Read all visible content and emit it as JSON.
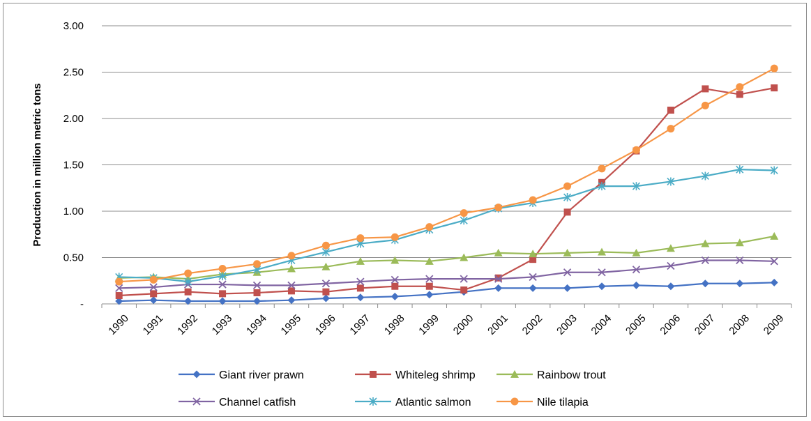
{
  "chart_data": {
    "type": "line",
    "title": "",
    "xlabel": "",
    "ylabel": "Production in million  metric tons",
    "ylim": [
      0,
      3.0
    ],
    "yticks": [
      0,
      0.5,
      1.0,
      1.5,
      2.0,
      2.5,
      3.0
    ],
    "ytick_labels": [
      "-",
      "0.50",
      "1.00",
      "1.50",
      "2.00",
      "2.50",
      "3.00"
    ],
    "grid": "horizontal",
    "legend_position": "bottom",
    "categories": [
      "1990",
      "1991",
      "1992",
      "1993",
      "1994",
      "1995",
      "1996",
      "1997",
      "1998",
      "1999",
      "2000",
      "2001",
      "2002",
      "2003",
      "2004",
      "2005",
      "2006",
      "2007",
      "2008",
      "2009"
    ],
    "series": [
      {
        "name": "Giant river prawn",
        "color": "#4472c4",
        "marker": "diamond",
        "values": [
          0.03,
          0.04,
          0.03,
          0.03,
          0.03,
          0.04,
          0.06,
          0.07,
          0.08,
          0.1,
          0.13,
          0.17,
          0.17,
          0.17,
          0.19,
          0.2,
          0.19,
          0.22,
          0.22,
          0.23
        ]
      },
      {
        "name": "Whiteleg shrimp",
        "color": "#c0504d",
        "marker": "square",
        "values": [
          0.09,
          0.11,
          0.13,
          0.11,
          0.12,
          0.14,
          0.13,
          0.17,
          0.19,
          0.19,
          0.15,
          0.28,
          0.48,
          0.99,
          1.31,
          1.65,
          2.09,
          2.32,
          2.26,
          2.33
        ]
      },
      {
        "name": "Rainbow trout",
        "color": "#9bbb59",
        "marker": "triangle",
        "values": [
          0.28,
          0.29,
          0.27,
          0.32,
          0.34,
          0.38,
          0.4,
          0.46,
          0.47,
          0.46,
          0.5,
          0.55,
          0.54,
          0.55,
          0.56,
          0.55,
          0.6,
          0.65,
          0.66,
          0.73
        ]
      },
      {
        "name": "Channel catfish",
        "color": "#8064a2",
        "marker": "x",
        "values": [
          0.17,
          0.18,
          0.21,
          0.21,
          0.2,
          0.2,
          0.22,
          0.24,
          0.26,
          0.27,
          0.27,
          0.27,
          0.29,
          0.34,
          0.34,
          0.37,
          0.41,
          0.47,
          0.47,
          0.46
        ]
      },
      {
        "name": "Atlantic salmon",
        "color": "#4bacc6",
        "marker": "star",
        "values": [
          0.29,
          0.28,
          0.24,
          0.3,
          0.37,
          0.47,
          0.56,
          0.65,
          0.69,
          0.8,
          0.9,
          1.03,
          1.09,
          1.15,
          1.27,
          1.27,
          1.32,
          1.38,
          1.45,
          1.44
        ]
      },
      {
        "name": "Nile tilapia",
        "color": "#f79646",
        "marker": "circle",
        "values": [
          0.24,
          0.26,
          0.33,
          0.38,
          0.43,
          0.52,
          0.63,
          0.71,
          0.72,
          0.83,
          0.98,
          1.04,
          1.12,
          1.27,
          1.46,
          1.66,
          1.89,
          2.14,
          2.34,
          2.54
        ]
      }
    ]
  }
}
